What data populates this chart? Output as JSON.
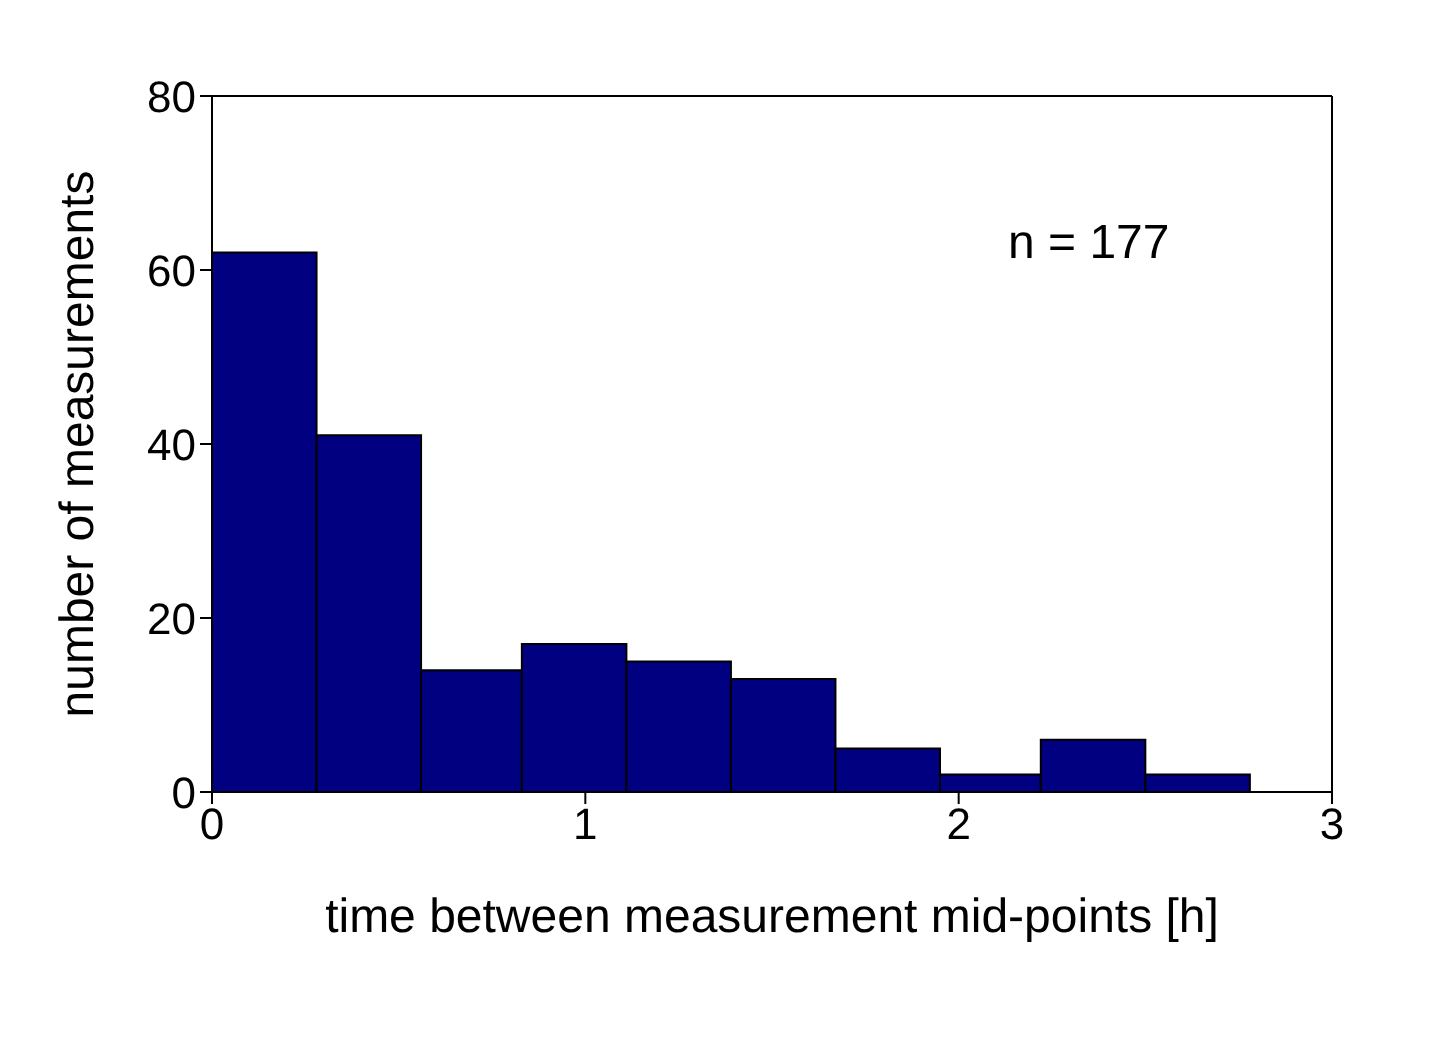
{
  "chart_data": {
    "type": "histogram",
    "xlabel": "time between measurement mid-points [h]",
    "ylabel": "number of measurements",
    "bins": [
      0,
      0.28,
      0.56,
      0.83,
      1.11,
      1.39,
      1.67,
      1.95,
      2.22,
      2.5,
      2.78
    ],
    "values": [
      62,
      41,
      14,
      17,
      15,
      13,
      5,
      2,
      6,
      2
    ],
    "color": "#000080",
    "xlim": [
      0,
      3
    ],
    "xticks": [
      0,
      1,
      2,
      3
    ],
    "ylim": [
      0,
      80
    ],
    "yticks": [
      0,
      20,
      40,
      60,
      80
    ],
    "annotations": [
      "n = 177"
    ]
  }
}
